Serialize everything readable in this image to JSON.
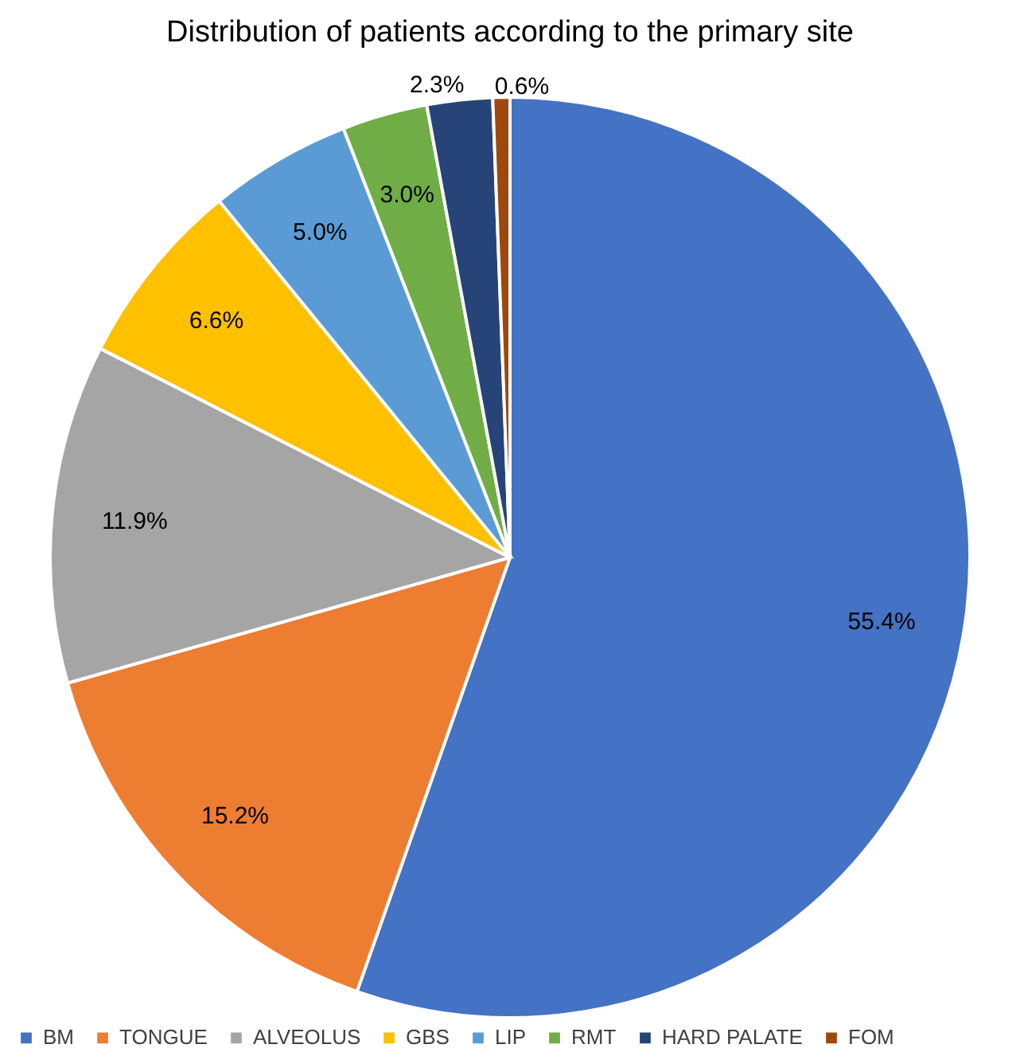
{
  "chart_data": {
    "type": "pie",
    "title": "Distribution of patients according to the primary site",
    "categories": [
      "BM",
      "TONGUE",
      "ALVEOLUS",
      "GBS",
      "LIP",
      "RMT",
      "HARD PALATE",
      "FOM"
    ],
    "values": [
      55.4,
      15.2,
      11.9,
      6.6,
      5.0,
      3.0,
      2.3,
      0.6
    ],
    "colors": [
      "#4472c4",
      "#ed7d31",
      "#a5a5a5",
      "#ffc000",
      "#5b9bd5",
      "#70ad47",
      "#264478",
      "#9e480e"
    ],
    "value_labels": [
      "55.4%",
      "15.2%",
      "11.9%",
      "6.6%",
      "5.0%",
      "3.0%",
      "2.3%",
      "0.6%"
    ],
    "legend": "bottom"
  }
}
